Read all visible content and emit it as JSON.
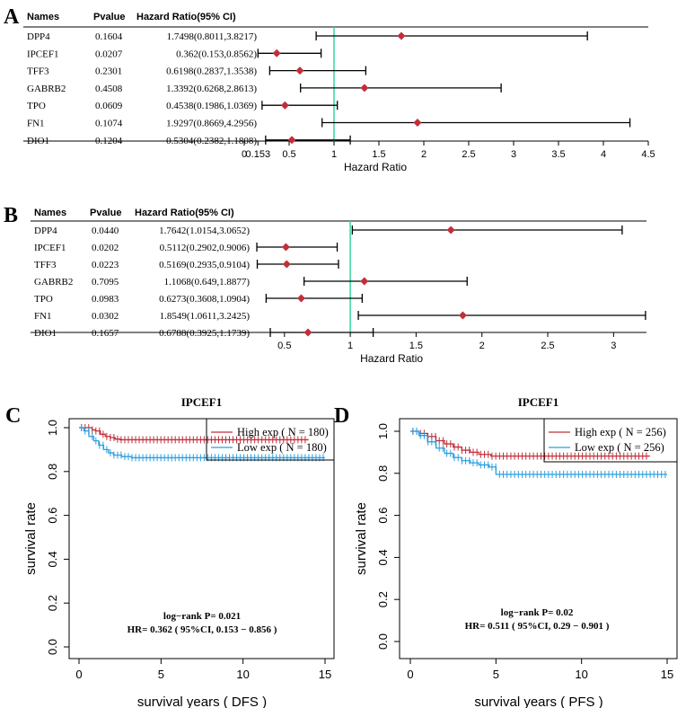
{
  "panels": {
    "A": {
      "letter": "A"
    },
    "B": {
      "letter": "B"
    },
    "C": {
      "letter": "C"
    },
    "D": {
      "letter": "D"
    }
  },
  "chart_data": [
    {
      "panel": "A",
      "type": "forest",
      "columns": [
        "Names",
        "Pvalue",
        "Hazard Ratio(95% CI)"
      ],
      "rows": [
        {
          "name": "DPP4",
          "pvalue": "0.1604",
          "hr_text": "1.7498(0.8011,3.8217)",
          "hr": 1.7498,
          "lo": 0.8011,
          "hi": 3.8217
        },
        {
          "name": "IPCEF1",
          "pvalue": "0.0207",
          "hr_text": "0.362(0.153,0.8562)",
          "hr": 0.362,
          "lo": 0.153,
          "hi": 0.8562
        },
        {
          "name": "TFF3",
          "pvalue": "0.2301",
          "hr_text": "0.6198(0.2837,1.3538)",
          "hr": 0.6198,
          "lo": 0.2837,
          "hi": 1.3538
        },
        {
          "name": "GABRB2",
          "pvalue": "0.4508",
          "hr_text": "1.3392(0.6268,2.8613)",
          "hr": 1.3392,
          "lo": 0.6268,
          "hi": 2.8613
        },
        {
          "name": "TPO",
          "pvalue": "0.0609",
          "hr_text": "0.4538(0.1986,1.0369)",
          "hr": 0.4538,
          "lo": 0.1986,
          "hi": 1.0369
        },
        {
          "name": "FN1",
          "pvalue": "0.1074",
          "hr_text": "1.9297(0.8669,4.2956)",
          "hr": 1.9297,
          "lo": 0.8669,
          "hi": 4.2956
        },
        {
          "name": "DIO1",
          "pvalue": "0.1204",
          "hr_text": "0.5304(0.2382,1.1808)",
          "hr": 0.5304,
          "lo": 0.2382,
          "hi": 1.1808
        }
      ],
      "xlim": [
        0,
        4.5
      ],
      "ticks": [
        0,
        0.153,
        0.5,
        1,
        1.5,
        2,
        2.5,
        3,
        3.5,
        4,
        4.5
      ],
      "tick_labels": [
        "0",
        "0.153",
        "0.5",
        "1",
        "1.5",
        "2",
        "2.5",
        "3",
        "3.5",
        "4",
        "4.5"
      ],
      "reference_line": 1,
      "xlabel": "Hazard Ratio"
    },
    {
      "panel": "B",
      "type": "forest",
      "columns": [
        "Names",
        "Pvalue",
        "Hazard Ratio(95% CI)"
      ],
      "rows": [
        {
          "name": "DPP4",
          "pvalue": "0.0440",
          "hr_text": "1.7642(1.0154,3.0652)",
          "hr": 1.7642,
          "lo": 1.0154,
          "hi": 3.0652
        },
        {
          "name": "IPCEF1",
          "pvalue": "0.0202",
          "hr_text": "0.5112(0.2902,0.9006)",
          "hr": 0.5112,
          "lo": 0.2902,
          "hi": 0.9006
        },
        {
          "name": "TFF3",
          "pvalue": "0.0223",
          "hr_text": "0.5169(0.2935,0.9104)",
          "hr": 0.5169,
          "lo": 0.2935,
          "hi": 0.9104
        },
        {
          "name": "GABRB2",
          "pvalue": "0.7095",
          "hr_text": "1.1068(0.649,1.8877)",
          "hr": 1.1068,
          "lo": 0.649,
          "hi": 1.8877
        },
        {
          "name": "TPO",
          "pvalue": "0.0983",
          "hr_text": "0.6273(0.3608,1.0904)",
          "hr": 0.6273,
          "lo": 0.3608,
          "hi": 1.0904
        },
        {
          "name": "FN1",
          "pvalue": "0.0302",
          "hr_text": "1.8549(1.0611,3.2425)",
          "hr": 1.8549,
          "lo": 1.0611,
          "hi": 3.2425
        },
        {
          "name": "DIO1",
          "pvalue": "0.1657",
          "hr_text": "0.6788(0.3925,1.1739)",
          "hr": 0.6788,
          "lo": 0.3925,
          "hi": 1.1739
        }
      ],
      "xlim": [
        0.29,
        3.25
      ],
      "ticks": [
        0.5,
        1,
        1.5,
        2,
        2.5,
        3
      ],
      "tick_labels": [
        "0.5",
        "1",
        "1.5",
        "2",
        "2.5",
        "3"
      ],
      "reference_line": 1,
      "xlabel": "Hazard Ratio"
    },
    {
      "panel": "C",
      "type": "line",
      "title": "IPCEF1",
      "xlabel": "survival years ( DFS )",
      "ylabel": "survival rate",
      "xlim": [
        0,
        15
      ],
      "ylim": [
        0,
        1
      ],
      "xticks": [
        0,
        5,
        10,
        15
      ],
      "yticks": [
        0.0,
        0.2,
        0.4,
        0.6,
        0.8,
        1.0
      ],
      "ytick_labels": [
        "0.0",
        "0.2",
        "0.4",
        "0.6",
        "0.8",
        "1.0"
      ],
      "legend": [
        "High exp ( N = 180)",
        "Low exp ( N = 180)"
      ],
      "annotation": [
        "log−rank P= 0.021",
        "HR= 0.362 ( 95%CI, 0.153 − 0.856 )"
      ],
      "series": [
        {
          "name": "High exp ( N = 180)",
          "color": "#c0303a",
          "x": [
            0,
            0.4,
            0.8,
            1.0,
            1.3,
            1.6,
            1.9,
            2.2,
            2.5,
            14
          ],
          "y": [
            1.0,
            1.0,
            0.99,
            0.985,
            0.97,
            0.96,
            0.955,
            0.948,
            0.945,
            0.945
          ]
        },
        {
          "name": "Low exp ( N = 180)",
          "color": "#2b9fe0",
          "x": [
            0,
            0.3,
            0.6,
            0.9,
            1.2,
            1.5,
            1.8,
            2.1,
            2.6,
            3.2,
            15
          ],
          "y": [
            1.0,
            0.985,
            0.96,
            0.94,
            0.92,
            0.9,
            0.885,
            0.875,
            0.868,
            0.863,
            0.863
          ]
        }
      ]
    },
    {
      "panel": "D",
      "type": "line",
      "title": "IPCEF1",
      "xlabel": "survival years ( PFS  )",
      "ylabel": "survival rate",
      "xlim": [
        0,
        15
      ],
      "ylim": [
        0,
        1
      ],
      "xticks": [
        0,
        5,
        10,
        15
      ],
      "yticks": [
        0.0,
        0.2,
        0.4,
        0.6,
        0.8,
        1.0
      ],
      "ytick_labels": [
        "0.0",
        "0.2",
        "0.4",
        "0.6",
        "0.8",
        "1.0"
      ],
      "legend": [
        "High exp ( N = 256)",
        "Low exp ( N = 256)"
      ],
      "annotation": [
        "log−rank P= 0.02",
        "HR= 0.511 ( 95%CI, 0.29 − 0.901 )"
      ],
      "series": [
        {
          "name": "High exp ( N = 256)",
          "color": "#c0303a",
          "x": [
            0,
            0.5,
            1.0,
            1.5,
            2.0,
            2.5,
            3.0,
            3.5,
            4.0,
            4.7,
            14
          ],
          "y": [
            1.0,
            0.99,
            0.975,
            0.955,
            0.94,
            0.925,
            0.91,
            0.9,
            0.89,
            0.882,
            0.882
          ]
        },
        {
          "name": "Low exp ( N = 256)",
          "color": "#2b9fe0",
          "x": [
            0,
            0.5,
            1.0,
            1.5,
            2.0,
            2.5,
            3.0,
            3.5,
            4.0,
            4.6,
            5.0,
            15
          ],
          "y": [
            1.0,
            0.98,
            0.95,
            0.92,
            0.895,
            0.875,
            0.86,
            0.85,
            0.84,
            0.83,
            0.795,
            0.795
          ]
        }
      ]
    }
  ]
}
